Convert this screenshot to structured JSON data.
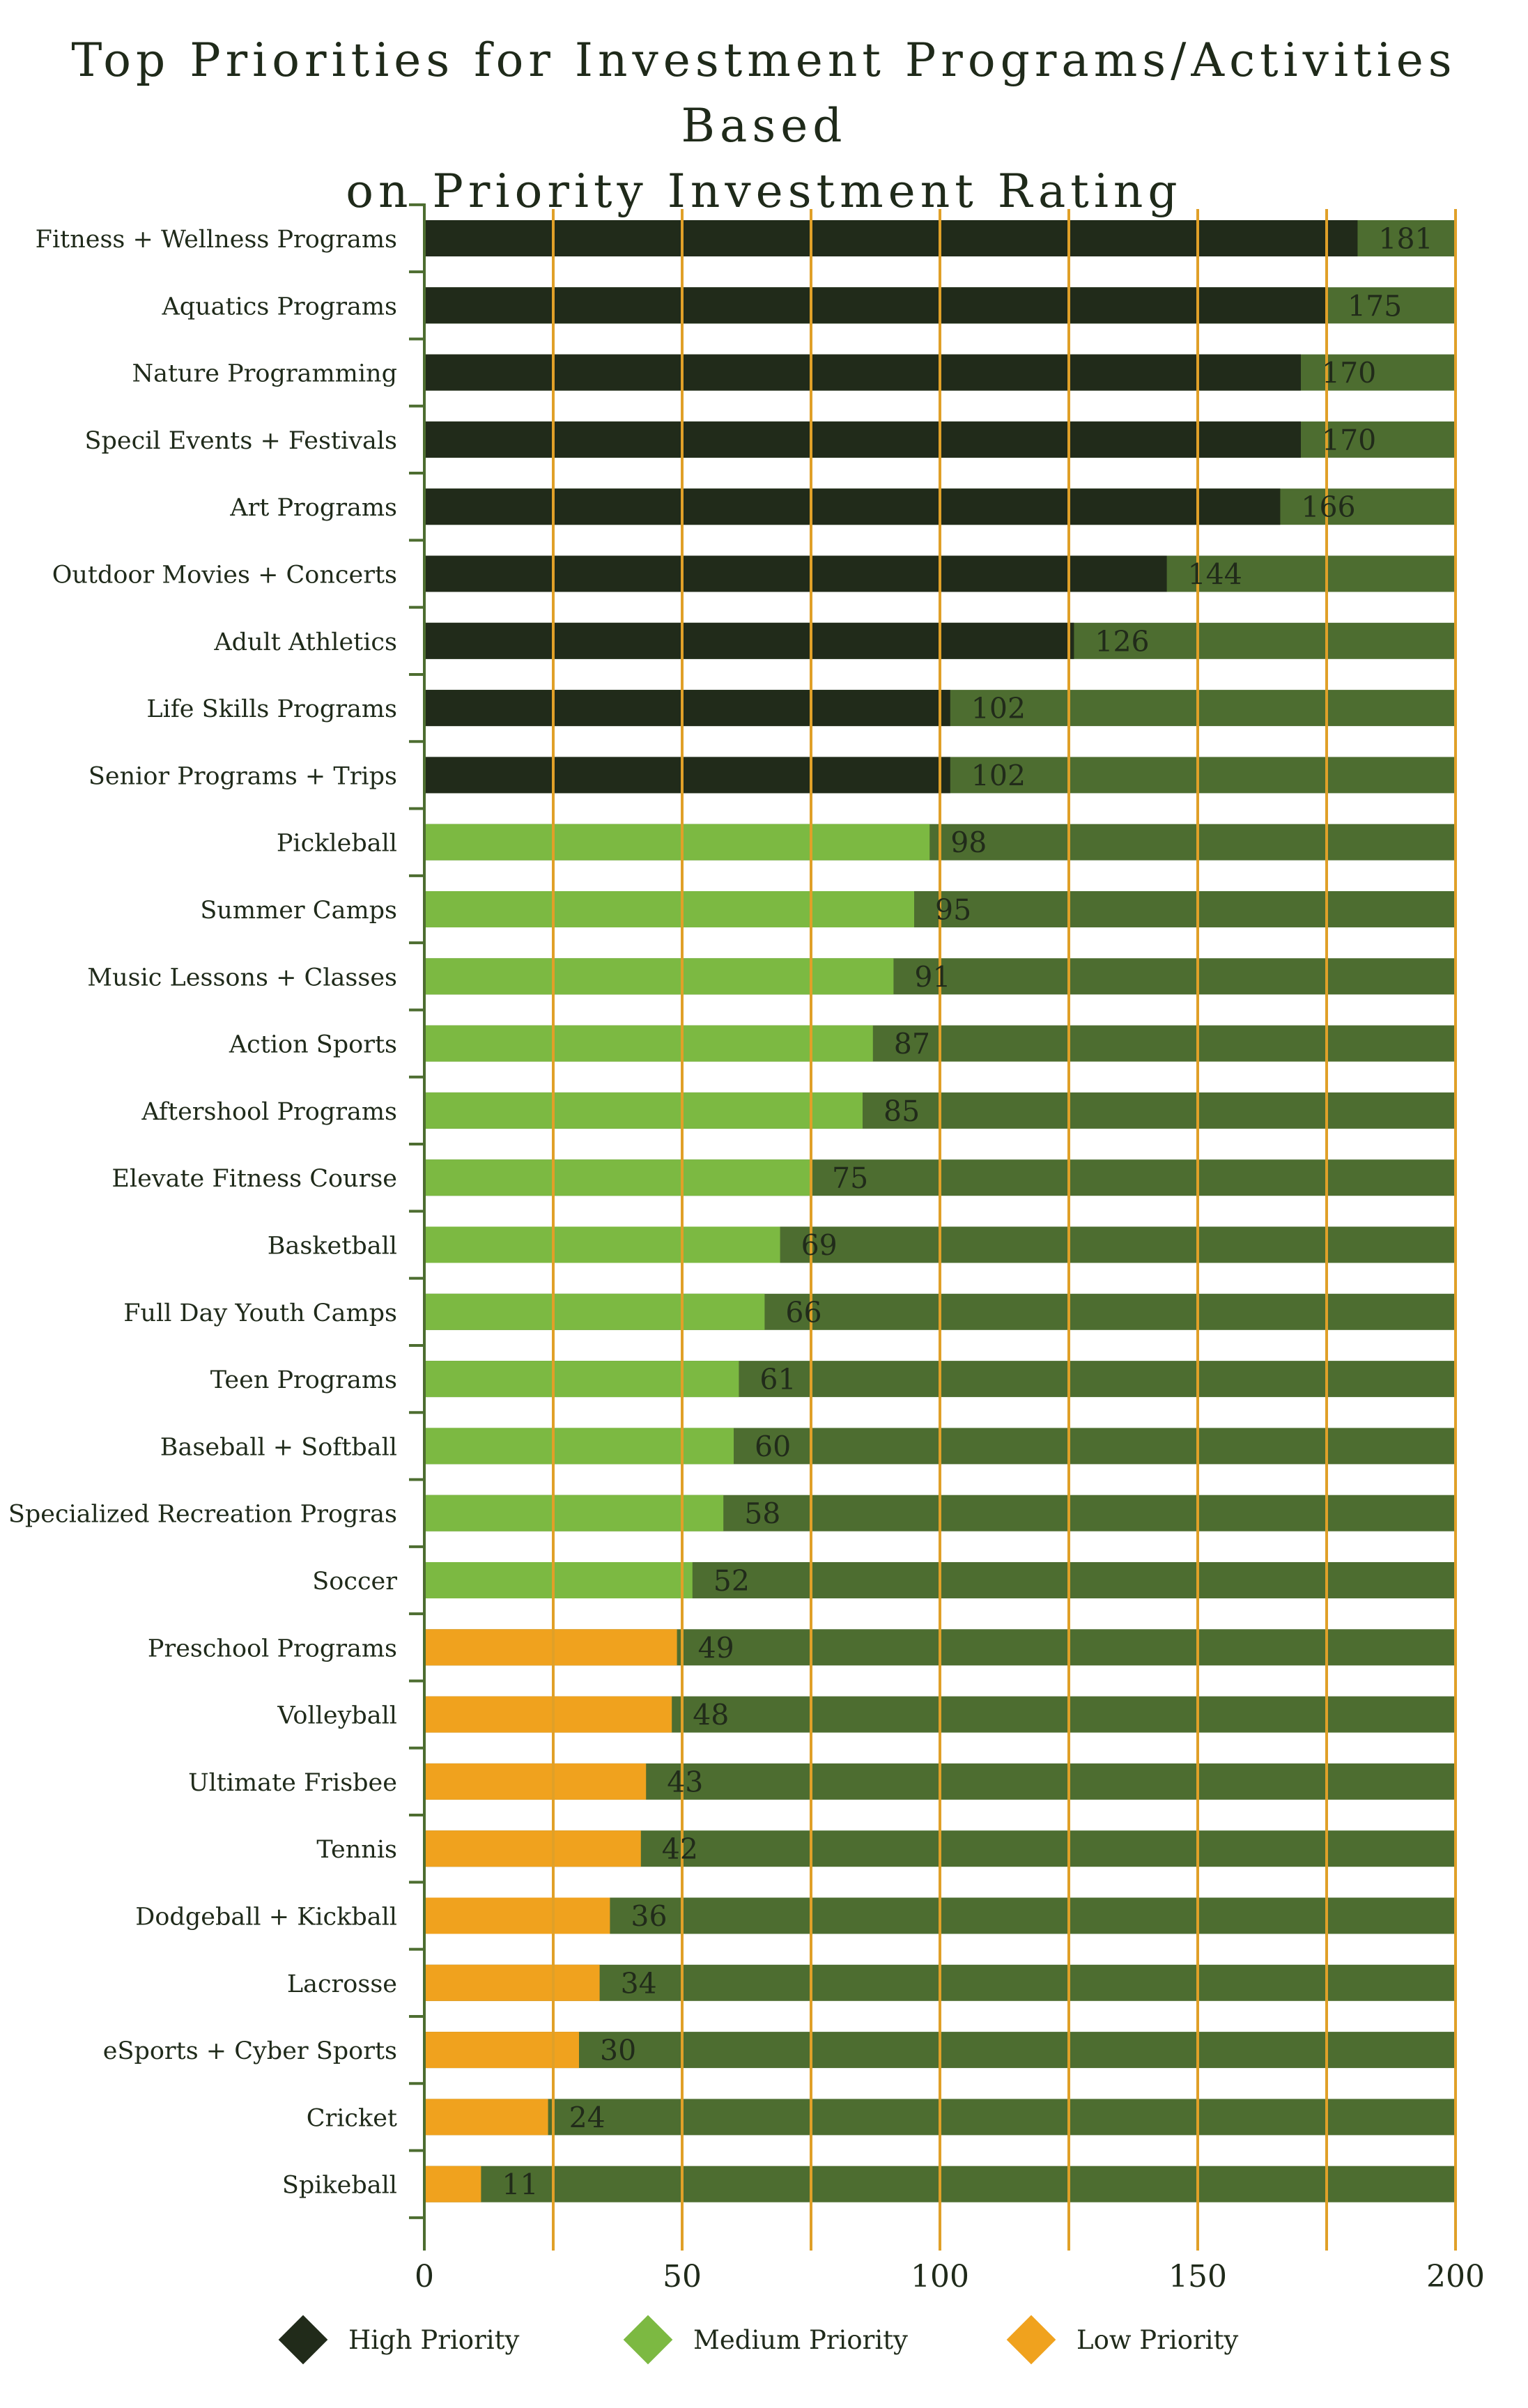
{
  "colors": {
    "high": "#212b1a",
    "medium": "#7cb942",
    "low": "#f0a21e",
    "background_bar": "#4d6d30",
    "grid": "#e0a028",
    "axis": "#4d6d30",
    "text": "#1f2a1a"
  },
  "chart_data": {
    "type": "bar",
    "orientation": "horizontal",
    "title": "Top Priorities for Investment Programs/Activities Based on Priority Investment Rating",
    "title_lines": [
      "Top Priorities for Investment Programs/Activities Based",
      "on Priority Investment Rating"
    ],
    "xlim": [
      0,
      200
    ],
    "x_ticks": [
      0,
      50,
      100,
      150,
      200
    ],
    "x_gridlines": [
      25,
      50,
      75,
      100,
      125,
      150,
      175,
      200
    ],
    "bar_max": 200,
    "grid": true,
    "legend_position": "bottom",
    "legend": [
      {
        "key": "high",
        "label": "High Priority"
      },
      {
        "key": "medium",
        "label": "Medium Priority"
      },
      {
        "key": "low",
        "label": "Low Priority"
      }
    ],
    "categories": [
      "Fitness + Wellness Programs",
      "Aquatics Programs",
      "Nature Programming",
      "Specil Events + Festivals",
      "Art Programs",
      "Outdoor Movies + Concerts",
      "Adult Athletics",
      "Life Skills Programs",
      "Senior Programs + Trips",
      "Pickleball",
      "Summer Camps",
      "Music Lessons + Classes",
      "Action Sports",
      "Aftershool Programs",
      "Elevate Fitness Course",
      "Basketball",
      "Full Day Youth Camps",
      "Teen Programs",
      "Baseball + Softball",
      "Specialized Recreation Progras",
      "Soccer",
      "Preschool Programs",
      "Volleyball",
      "Ultimate Frisbee",
      "Tennis",
      "Dodgeball + Kickball",
      "Lacrosse",
      "eSports + Cyber Sports",
      "Cricket",
      "Spikeball"
    ],
    "values": [
      181,
      175,
      170,
      170,
      166,
      144,
      126,
      102,
      102,
      98,
      95,
      91,
      87,
      85,
      75,
      69,
      66,
      61,
      60,
      58,
      52,
      49,
      48,
      43,
      42,
      36,
      34,
      30,
      24,
      11
    ],
    "priority": [
      "high",
      "high",
      "high",
      "high",
      "high",
      "high",
      "high",
      "high",
      "high",
      "medium",
      "medium",
      "medium",
      "medium",
      "medium",
      "medium",
      "medium",
      "medium",
      "medium",
      "medium",
      "medium",
      "medium",
      "low",
      "low",
      "low",
      "low",
      "low",
      "low",
      "low",
      "low",
      "low"
    ]
  }
}
